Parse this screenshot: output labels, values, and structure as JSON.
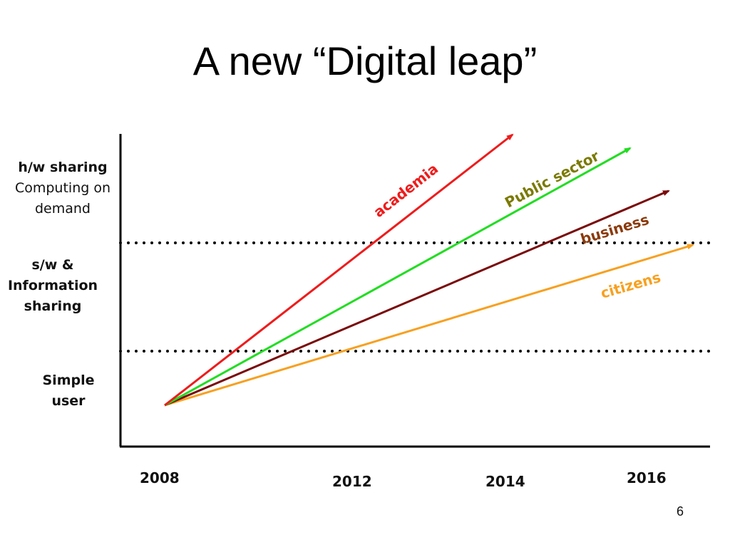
{
  "slide": {
    "title": "A new “Digital leap”",
    "page_number": "6"
  },
  "y_levels": {
    "top": {
      "line1": "h/w sharing",
      "line2": "Computing on",
      "line3": "demand"
    },
    "middle": {
      "line1": "s/w &",
      "line2": "Information",
      "line3": "sharing"
    },
    "bottom": {
      "line1": "Simple",
      "line2": "user"
    }
  },
  "x_ticks": [
    "2008",
    "2012",
    "2014",
    "2016"
  ],
  "series": [
    {
      "name": "academia",
      "color": "#ee1c1c"
    },
    {
      "name": "Public sector",
      "color": "#22dd22",
      "label_color": "#7a7a00"
    },
    {
      "name": "business",
      "color": "#7a0a0a",
      "label_color": "#8b3a0a"
    },
    {
      "name": "citizens",
      "color": "#f7a020"
    }
  ]
}
